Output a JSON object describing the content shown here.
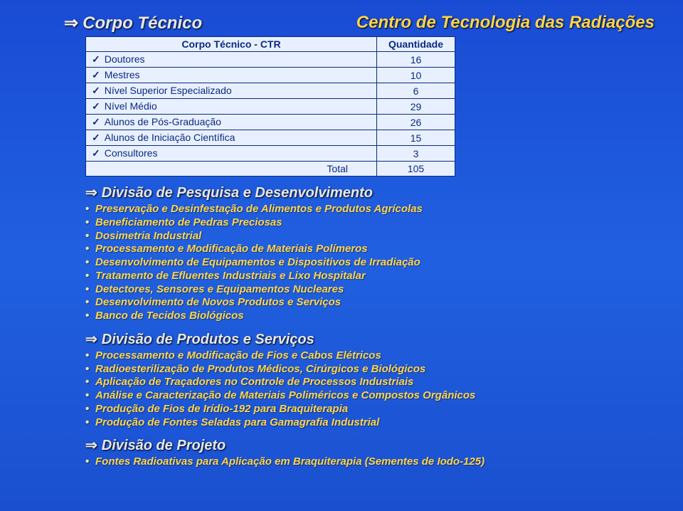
{
  "header": {
    "section_label": "Corpo Técnico",
    "center_title": "Centro de Tecnologia das Radiações"
  },
  "table": {
    "col1": "Corpo Técnico - CTR",
    "col2": "Quantidade",
    "rows": [
      {
        "label": "Doutores",
        "qty": "16"
      },
      {
        "label": "Mestres",
        "qty": "10"
      },
      {
        "label": "Nível Superior Especializado",
        "qty": "6"
      },
      {
        "label": "Nível Médio",
        "qty": "29"
      },
      {
        "label": "Alunos de Pós-Graduação",
        "qty": "26"
      },
      {
        "label": "Alunos de Iniciação Científica",
        "qty": "15"
      },
      {
        "label": "Consultores",
        "qty": "3"
      }
    ],
    "total_label": "Total",
    "total_qty": "105"
  },
  "sections": [
    {
      "title": "Divisão de Pesquisa e Desenvolvimento",
      "items": [
        "Preservação e Desinfestação de Alimentos e Produtos Agrícolas",
        "Beneficiamento de Pedras Preciosas",
        "Dosimetria Industrial",
        "Processamento e Modificação de Materiais Polímeros",
        "Desenvolvimento de Equipamentos e Dispositivos de Irradiação",
        "Tratamento de Efluentes Industriais e Lixo Hospitalar",
        "Detectores, Sensores e Equipamentos Nucleares",
        "Desenvolvimento de Novos Produtos e Serviços",
        "Banco de Tecidos Biológicos"
      ]
    },
    {
      "title": "Divisão de Produtos e Serviços",
      "items": [
        "Processamento e Modificação de Fios e Cabos Elétricos",
        "Radioesterilização de Produtos Médicos, Cirúrgicos e Biológicos",
        "Aplicação de Traçadores no Controle de Processos Industriais",
        "Análise e Caracterização de Materiais Poliméricos e Compostos Orgânicos",
        "Produção de Fios de Irídio-192 para Braquiterapia",
        "Produção de Fontes Seladas para Gamagrafia Industrial"
      ]
    },
    {
      "title": "Divisão de Projeto",
      "items": [
        "Fontes Radioativas para Aplicação em Braquiterapia (Sementes de Iodo-125)"
      ]
    }
  ]
}
